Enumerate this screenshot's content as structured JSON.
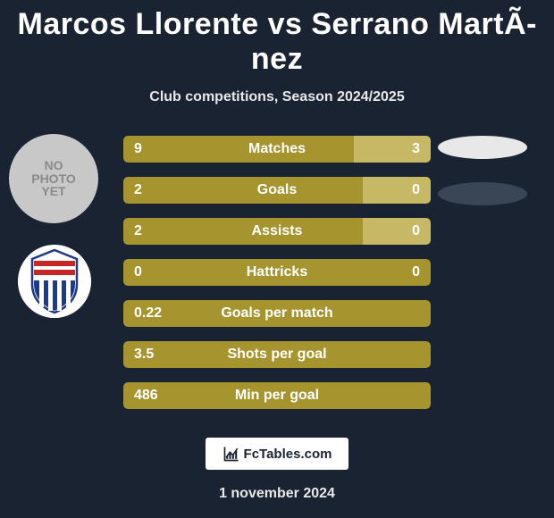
{
  "title": "Marcos Llorente vs Serrano MartÃ­nez",
  "subtitle": "Club competitions, Season 2024/2025",
  "date": "1 november 2024",
  "footer_brand": "FcTables.com",
  "colors": {
    "background": "#1a2332",
    "bar_olive": "#a6952f",
    "bar_right_seg": "#c7b866",
    "ellipse1_fill": "#e8e8e8",
    "ellipse2_fill": "#3a4556",
    "placeholder_bg": "#c8c8c8",
    "placeholder_text": "#8a8a8a",
    "badge_red": "#c62828",
    "badge_blue": "#1e3a8a",
    "badge_white": "#ffffff"
  },
  "player1": {
    "has_photo": false,
    "no_photo_text": [
      "NO",
      "PHOTO",
      "YET"
    ]
  },
  "player2": {
    "has_photo": false
  },
  "stats": [
    {
      "label": "Matches",
      "left_val": "9",
      "right_val": "3",
      "left_pct": 75,
      "right_seg_pct": 25,
      "show_right_seg": true
    },
    {
      "label": "Goals",
      "left_val": "2",
      "right_val": "0",
      "left_pct": 78,
      "right_seg_pct": 22,
      "show_right_seg": true
    },
    {
      "label": "Assists",
      "left_val": "2",
      "right_val": "0",
      "left_pct": 78,
      "right_seg_pct": 22,
      "show_right_seg": true
    },
    {
      "label": "Hattricks",
      "left_val": "0",
      "right_val": "0",
      "left_pct": 100,
      "right_seg_pct": 0,
      "show_right_seg": false
    },
    {
      "label": "Goals per match",
      "left_val": "0.22",
      "right_val": "",
      "left_pct": 100,
      "right_seg_pct": 0,
      "show_right_seg": false
    },
    {
      "label": "Shots per goal",
      "left_val": "3.5",
      "right_val": "",
      "left_pct": 100,
      "right_seg_pct": 0,
      "show_right_seg": false
    },
    {
      "label": "Min per goal",
      "left_val": "486",
      "right_val": "",
      "left_pct": 100,
      "right_seg_pct": 0,
      "show_right_seg": false
    }
  ]
}
